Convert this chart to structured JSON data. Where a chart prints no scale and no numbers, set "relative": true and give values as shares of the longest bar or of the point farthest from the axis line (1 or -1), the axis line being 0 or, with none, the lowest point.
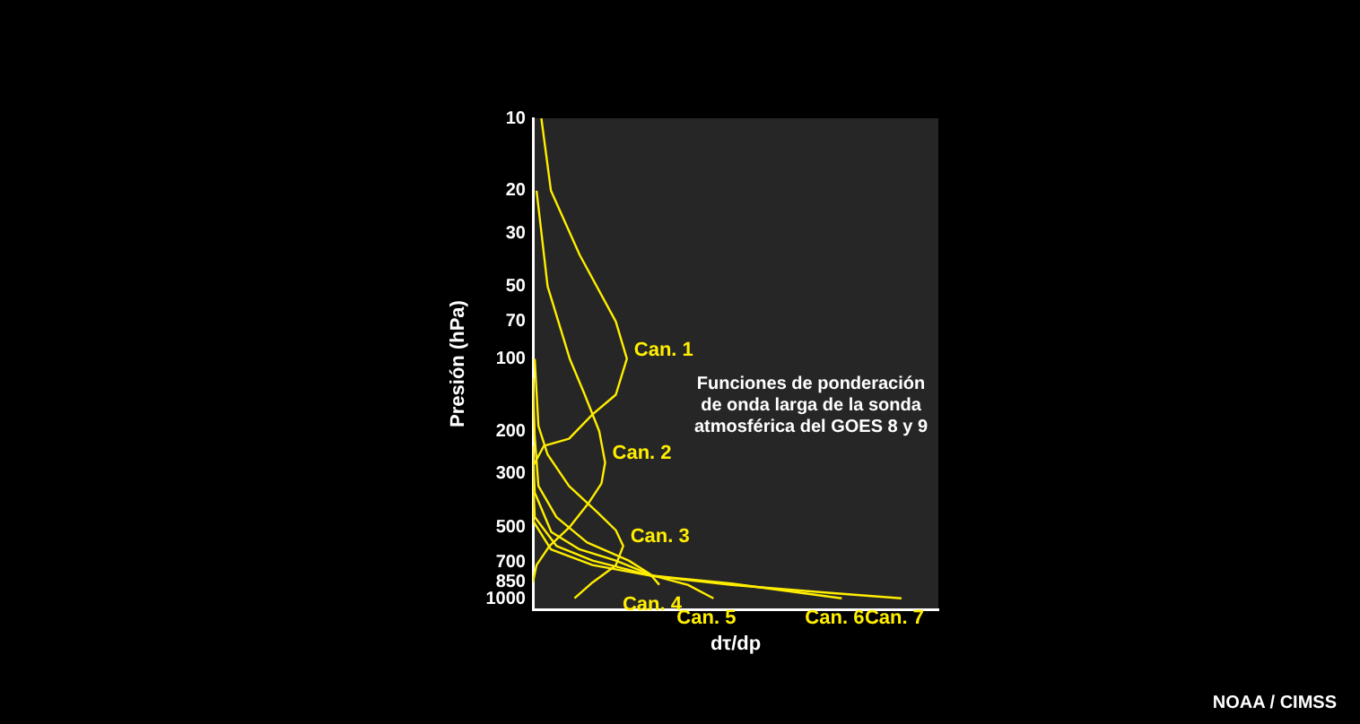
{
  "chart_data": {
    "type": "line",
    "orientation": "horizontal",
    "relative": true,
    "xlabel": "dτ/dp",
    "ylabel": "Presión (hPa)",
    "ylim": [
      1100,
      10
    ],
    "yticks": [
      10,
      20,
      30,
      50,
      70,
      100,
      200,
      300,
      500,
      700,
      850,
      1000
    ],
    "log": "y",
    "legend": false,
    "grid": false,
    "marker": "none",
    "line_style": "solid",
    "annotations": [
      "Funciones de ponderación de onda larga de la sonda atmosférica del GOES 8 y 9",
      "NOAA / CIMSS"
    ],
    "series": [
      {
        "name": "Can. 1",
        "color": "#ffee00",
        "values": [
          0.023,
          0.049,
          0.127,
          0.225,
          0.255,
          0.225,
          0.162,
          0.098,
          0.03,
          0,
          0
        ],
        "x": [
          10,
          20,
          37,
          70,
          100,
          141,
          170,
          215,
          230,
          280,
          320
        ]
      },
      {
        "name": "Can. 2",
        "color": "#ffee00",
        "values": [
          0.01,
          0.04,
          0.1,
          0.14,
          0.18,
          0.196,
          0.186,
          0.15,
          0.1,
          0.045,
          0.01,
          0
        ],
        "x": [
          20,
          50,
          100,
          140,
          200,
          270,
          330,
          400,
          500,
          600,
          720,
          850
        ]
      },
      {
        "name": "Can. 3",
        "color": "#ffee00",
        "values": [
          0.005,
          0.015,
          0.04,
          0.098,
          0.176,
          0.225,
          0.245,
          0.225,
          0.162,
          0.113
        ],
        "x": [
          100,
          190,
          250,
          338,
          436,
          516,
          600,
          722,
          850,
          990
        ]
      },
      {
        "name": "Can. 4",
        "color": "#ffee00",
        "values": [
          0,
          0.005,
          0.015,
          0.064,
          0.147,
          0.26,
          0.318,
          0.343
        ],
        "x": [
          120,
          210,
          338,
          455,
          580,
          690,
          786,
          870
        ]
      },
      {
        "name": "Can. 5",
        "color": "#ffee00",
        "values": [
          0,
          0.005,
          0.05,
          0.127,
          0.225,
          0.324,
          0.42,
          0.49
        ],
        "x": [
          230,
          360,
          525,
          620,
          690,
          795,
          870,
          990
        ]
      },
      {
        "name": "Can. 6",
        "color": "#ffee00",
        "values": [
          0,
          0.005,
          0.064,
          0.162,
          0.319,
          0.539,
          0.838
        ],
        "x": [
          300,
          455,
          600,
          690,
          795,
          860,
          990
        ]
      },
      {
        "name": "Can. 7",
        "color": "#ffee00",
        "values": [
          0,
          0,
          0.049,
          0.162,
          0.324,
          0.539,
          0.784,
          1
        ],
        "x": [
          350,
          470,
          620,
          720,
          800,
          871,
          935,
          990
        ]
      }
    ]
  }
}
